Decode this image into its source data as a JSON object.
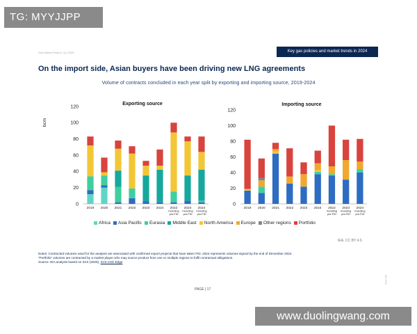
{
  "watermark_top": "TG: MYYJJPP",
  "watermark_bottom": "www.duolingwang.com",
  "report_source": "Gas Market Report, Q1-2025",
  "banner": "Key gas policies and market trends in 2024",
  "heading": "On the import side, Asian buyers have been driving new LNG agreements",
  "subtitle": "Volume of contracts concluded in each year split by exporting and importing source, 2019-2024",
  "y_unit": "bcm",
  "credit": "IEA. CC BY 4.0.",
  "notes": {
    "line1": "Notes: Contracted volumes used for the analysis are associated with confirmed export projects that have taken FID. 2024 represents volumes signed by the end of December 2024.",
    "line2": "“Portfolio” volumes are contracted by a market player who may source product from one or multiple regions to fulfil contractual obligations.",
    "line3_prefix": "Source: IEA analysis based on ICIS (2025),",
    "line3_link": "ICIS LNG Edge",
    "line3_suffix": "."
  },
  "page_label": "PAGE | 17",
  "side_mark": "IEA 2025",
  "colors": {
    "Africa": "#5fd5c8",
    "Asia Pacific": "#2e6cc2",
    "Eurasia": "#3fcf9f",
    "Middle East": "#16a89c",
    "North America": "#f2c636",
    "Europe": "#f0a830",
    "Other regions": "#7b8794",
    "Portfolio": "#d9433d"
  },
  "legend": [
    "Africa",
    "Asia Pacific",
    "Eurasia",
    "Middle East",
    "North America",
    "Europe",
    "Other regions",
    "Portfolio"
  ],
  "chart_data": [
    {
      "type": "bar",
      "stacked": true,
      "title": "Exporting source",
      "ylabel": "bcm",
      "ylim": [
        0,
        120
      ],
      "yticks": [
        0,
        20,
        40,
        60,
        80,
        100,
        120
      ],
      "categories": [
        "2019",
        "2020",
        "2021",
        "2022",
        "2023",
        "2024",
        "2022 Including pre-FID",
        "2023 Including pre-FID",
        "2024 Including pre-FID"
      ],
      "series": [
        {
          "name": "Africa",
          "values": [
            12,
            20,
            0,
            0,
            0,
            0,
            0,
            0,
            0
          ]
        },
        {
          "name": "Asia Pacific",
          "values": [
            5,
            3,
            2,
            7,
            3,
            2,
            2,
            4,
            2
          ]
        },
        {
          "name": "Eurasia",
          "values": [
            17,
            12,
            19,
            12,
            0,
            0,
            13,
            0,
            2
          ]
        },
        {
          "name": "Middle East",
          "values": [
            0,
            0,
            20,
            0,
            32,
            40,
            0,
            31,
            38
          ]
        },
        {
          "name": "North America",
          "values": [
            38,
            4,
            27,
            43,
            12,
            5,
            73,
            42,
            22
          ]
        },
        {
          "name": "Europe",
          "values": [
            0,
            0,
            0,
            0,
            0,
            0,
            0,
            0,
            0
          ]
        },
        {
          "name": "Other regions",
          "values": [
            0,
            0,
            0,
            0,
            0,
            0,
            0,
            0,
            0
          ]
        },
        {
          "name": "Portfolio",
          "values": [
            11,
            18,
            10,
            9,
            6,
            20,
            12,
            6,
            19
          ]
        }
      ]
    },
    {
      "type": "bar",
      "stacked": true,
      "title": "Importing source",
      "ylabel": "bcm",
      "ylim": [
        0,
        120
      ],
      "yticks": [
        0,
        20,
        40,
        60,
        80,
        100,
        120
      ],
      "categories": [
        "2019",
        "2020",
        "2021",
        "2022",
        "2023",
        "2024",
        "2022 Including pre-FID",
        "2023 Including pre-FID",
        "2024 Including pre-FID"
      ],
      "series": [
        {
          "name": "Africa",
          "values": [
            0,
            0,
            0,
            0,
            0,
            0,
            0,
            0,
            0
          ]
        },
        {
          "name": "Asia Pacific",
          "values": [
            17,
            14,
            64,
            26,
            22,
            38,
            36,
            31,
            40
          ]
        },
        {
          "name": "Eurasia",
          "values": [
            0,
            8,
            0,
            0,
            0,
            3,
            2,
            0,
            4
          ]
        },
        {
          "name": "Middle East",
          "values": [
            0,
            0,
            0,
            0,
            0,
            0,
            0,
            0,
            0
          ]
        },
        {
          "name": "North America",
          "values": [
            2,
            0,
            3,
            0,
            0,
            2,
            0,
            0,
            0
          ]
        },
        {
          "name": "Europe",
          "values": [
            0,
            8,
            3,
            9,
            16,
            9,
            10,
            25,
            10
          ]
        },
        {
          "name": "Other regions",
          "values": [
            0,
            3,
            0,
            0,
            0,
            0,
            0,
            0,
            0
          ]
        },
        {
          "name": "Portfolio",
          "values": [
            63,
            25,
            8,
            36,
            15,
            16,
            52,
            26,
            29
          ]
        }
      ]
    }
  ]
}
